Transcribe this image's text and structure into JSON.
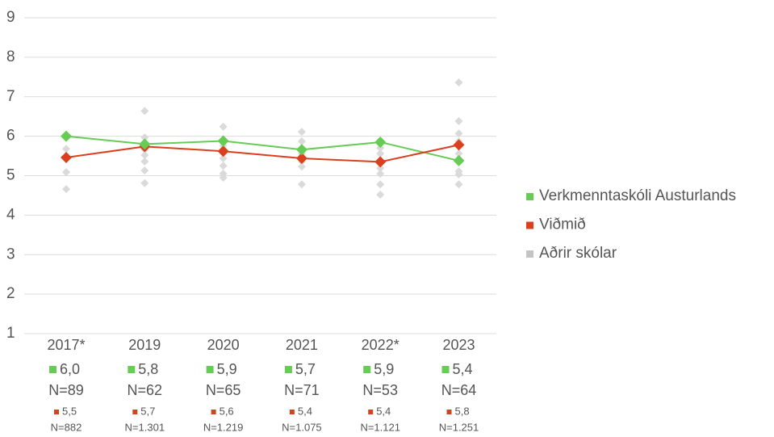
{
  "chart_data": {
    "type": "line",
    "categories": [
      "2017*",
      "2019",
      "2020",
      "2021",
      "2022*",
      "2023"
    ],
    "ylim": [
      1,
      9
    ],
    "yticks": [
      1,
      2,
      3,
      4,
      5,
      6,
      7,
      8,
      9
    ],
    "grid": true,
    "legend": "right",
    "series": [
      {
        "name": "Verkmenntaskóli Austurlands",
        "color": "#66cc55",
        "values": [
          6.0,
          5.8,
          5.88,
          5.66,
          5.85,
          5.38
        ],
        "value_labels": [
          "6,0",
          "5,8",
          "5,9",
          "5,7",
          "5,9",
          "5,4"
        ],
        "n_labels": [
          "N=89",
          "N=62",
          "N=65",
          "N=71",
          "N=53",
          "N=64"
        ]
      },
      {
        "name": "Viðmið",
        "color": "#d9411e",
        "values": [
          5.46,
          5.74,
          5.62,
          5.44,
          5.35,
          5.78
        ],
        "value_labels": [
          "5,5",
          "5,7",
          "5,6",
          "5,4",
          "5,4",
          "5,8"
        ],
        "n_labels": [
          "N=882",
          "N=1.301",
          "N=1.219",
          "N=1.075",
          "N=1.121",
          "N=1.251"
        ]
      },
      {
        "name": "Aðrir skólar",
        "color": "#c4c4c4",
        "type": "scatter",
        "values": [
          [
            5.68,
            5.44,
            5.09,
            4.66
          ],
          [
            6.64,
            5.97,
            5.81,
            5.66,
            5.52,
            5.36,
            5.13,
            4.81
          ],
          [
            6.24,
            5.76,
            5.6,
            5.44,
            5.25,
            5.05,
            4.95
          ],
          [
            6.11,
            5.87,
            5.56,
            5.36,
            5.23,
            4.78
          ],
          [
            5.7,
            5.56,
            5.36,
            5.19,
            5.05,
            4.78,
            4.52
          ],
          [
            7.36,
            6.38,
            6.07,
            5.87,
            5.56,
            5.11,
            5.03,
            4.78
          ]
        ]
      }
    ]
  }
}
